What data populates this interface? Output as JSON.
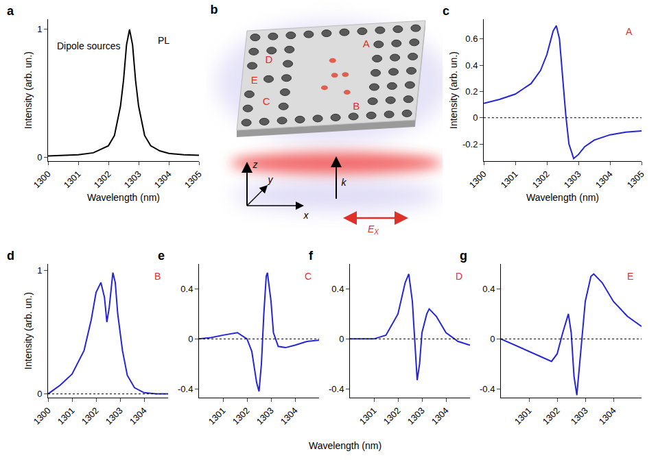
{
  "chart_data": [
    {
      "type": "line",
      "title": "a",
      "x_label": "Wavelength (nm)",
      "y_label": "Intensity (arb. un.)",
      "annotations": [
        "Dipole sources",
        "PL"
      ],
      "color": "#000000",
      "grid": false,
      "x": [
        1300,
        1300.5,
        1301,
        1301.5,
        1302,
        1302.2,
        1302.4,
        1302.5,
        1302.6,
        1302.7,
        1302.8,
        1302.9,
        1303,
        1303.2,
        1303.4,
        1303.7,
        1304,
        1304.5,
        1305
      ],
      "values": [
        0.01,
        0.015,
        0.02,
        0.035,
        0.09,
        0.17,
        0.4,
        0.6,
        0.88,
        1.0,
        0.88,
        0.6,
        0.4,
        0.17,
        0.09,
        0.05,
        0.03,
        0.02,
        0.015
      ],
      "xlim": [
        1300,
        1305
      ],
      "xticks": [
        1300,
        1301,
        1302,
        1303,
        1304,
        1305
      ],
      "ylim": [
        -0.03,
        1.08
      ],
      "yticks": [
        0,
        1
      ]
    },
    {
      "type": "line",
      "title": "c",
      "x_label": "Wavelength (nm)",
      "y_label": "Intensity (arb. un.)",
      "annotations": [
        "A"
      ],
      "color": "#2424d8",
      "grid": false,
      "reference_y": 0,
      "x": [
        1300,
        1300.5,
        1301,
        1301.5,
        1301.8,
        1302,
        1302.2,
        1302.3,
        1302.4,
        1302.5,
        1302.6,
        1302.7,
        1302.85,
        1303,
        1303.2,
        1303.5,
        1304,
        1304.5,
        1305
      ],
      "values": [
        0.11,
        0.14,
        0.18,
        0.26,
        0.36,
        0.48,
        0.66,
        0.7,
        0.6,
        0.3,
        0.02,
        -0.2,
        -0.31,
        -0.28,
        -0.22,
        -0.17,
        -0.13,
        -0.11,
        -0.1
      ],
      "xlim": [
        1300,
        1305
      ],
      "xticks": [
        1300,
        1301,
        1302,
        1303,
        1304,
        1305
      ],
      "ylim": [
        -0.33,
        0.75
      ],
      "yticks": [
        -0.2,
        0,
        0.2,
        0.4,
        0.6
      ]
    },
    {
      "type": "line",
      "title": "d",
      "y_label": "Intensity (arb. un.)",
      "annotations": [
        "B"
      ],
      "color": "#2424d8",
      "grid": false,
      "reference_y": 0,
      "x": [
        1300,
        1300.5,
        1301,
        1301.5,
        1301.8,
        1302,
        1302.2,
        1302.35,
        1302.45,
        1302.55,
        1302.7,
        1302.8,
        1302.9,
        1303.1,
        1303.3,
        1303.6,
        1304,
        1304.5,
        1305
      ],
      "values": [
        0.0,
        0.07,
        0.16,
        0.35,
        0.6,
        0.82,
        0.9,
        0.78,
        0.58,
        0.7,
        0.98,
        0.9,
        0.65,
        0.35,
        0.15,
        0.05,
        0.01,
        0.0,
        0.0
      ],
      "xlim": [
        1300,
        1305
      ],
      "xticks": [
        1300,
        1301,
        1302,
        1303,
        1304
      ],
      "ylim": [
        -0.03,
        1.05
      ],
      "yticks": [
        0,
        1
      ]
    },
    {
      "type": "line",
      "title": "e",
      "annotations": [
        "C"
      ],
      "color": "#2424d8",
      "grid": false,
      "reference_y": 0,
      "x": [
        1300,
        1300.5,
        1301,
        1301.6,
        1302,
        1302.2,
        1302.4,
        1302.5,
        1302.6,
        1302.7,
        1302.8,
        1302.85,
        1303,
        1303.1,
        1303.3,
        1303.6,
        1304,
        1304.5,
        1305
      ],
      "values": [
        0.0,
        0.01,
        0.03,
        0.05,
        0.0,
        -0.1,
        -0.35,
        -0.42,
        -0.2,
        0.2,
        0.5,
        0.53,
        0.3,
        0.05,
        -0.06,
        -0.07,
        -0.05,
        -0.02,
        -0.01
      ],
      "xlim": [
        1300,
        1305
      ],
      "xticks": [
        1301,
        1302,
        1303,
        1304
      ],
      "ylim": [
        -0.47,
        0.6
      ],
      "yticks": [
        -0.4,
        0,
        0.4
      ]
    },
    {
      "type": "line",
      "title": "f",
      "annotations": [
        "D"
      ],
      "color": "#2424d8",
      "grid": false,
      "reference_y": 0,
      "x": [
        1300,
        1301,
        1301.5,
        1302,
        1302.3,
        1302.45,
        1302.6,
        1302.7,
        1302.8,
        1302.9,
        1303,
        1303.2,
        1303.3,
        1303.6,
        1304,
        1304.5,
        1305
      ],
      "values": [
        0.0,
        0.0,
        0.03,
        0.2,
        0.45,
        0.52,
        0.3,
        -0.05,
        -0.33,
        -0.2,
        0.05,
        0.2,
        0.24,
        0.18,
        0.05,
        -0.02,
        -0.05
      ],
      "xlim": [
        1300,
        1305
      ],
      "xticks": [
        1301,
        1302,
        1303,
        1304
      ],
      "ylim": [
        -0.47,
        0.6
      ],
      "yticks": [
        -0.4,
        0,
        0.4
      ]
    },
    {
      "type": "line",
      "title": "g",
      "annotations": [
        "E"
      ],
      "color": "#2424d8",
      "grid": false,
      "reference_y": 0,
      "x": [
        1300,
        1300.5,
        1301,
        1301.5,
        1301.8,
        1302,
        1302.2,
        1302.4,
        1302.5,
        1302.6,
        1302.7,
        1302.8,
        1303,
        1303.2,
        1303.3,
        1303.6,
        1304,
        1304.5,
        1305
      ],
      "values": [
        0.0,
        -0.05,
        -0.1,
        -0.15,
        -0.18,
        -0.12,
        0.05,
        0.2,
        0.05,
        -0.3,
        -0.45,
        -0.2,
        0.3,
        0.5,
        0.52,
        0.45,
        0.3,
        0.18,
        0.1
      ],
      "xlim": [
        1300,
        1305
      ],
      "xticks": [
        1301,
        1302,
        1303,
        1304
      ],
      "ylim": [
        -0.47,
        0.6
      ],
      "yticks": [
        -0.4,
        0,
        0.4
      ]
    }
  ],
  "shared_x_label": "Wavelength (nm)",
  "diagram": {
    "panel": "b",
    "point_labels": [
      "A",
      "B",
      "C",
      "D",
      "E"
    ],
    "axis_labels": [
      "x",
      "y",
      "z"
    ],
    "wavevector": "k",
    "field": {
      "text": "E",
      "subscript": "X"
    }
  }
}
